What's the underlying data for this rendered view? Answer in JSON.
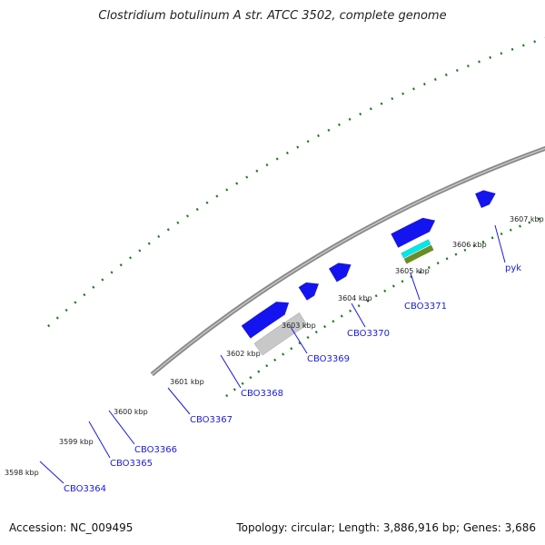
{
  "title": "Clostridium botulinum A str. ATCC 3502, complete genome",
  "footer": {
    "accession": "Accession: NC_009495",
    "stats": "Topology: circular; Length: 3,886,916 bp; Genes: 3,686"
  },
  "ticks": [
    "3598 kbp",
    "3599 kbp",
    "3600 kbp",
    "3601 kbp",
    "3602 kbp",
    "3603 kbp",
    "3604 kbp",
    "3605 kbp",
    "3606 kbp",
    "3607 kbp"
  ],
  "genes": [
    "CBO3364",
    "CBO3365",
    "CBO3366",
    "CBO3367",
    "CBO3368",
    "CBO3369",
    "CBO3370",
    "CBO3371",
    "pyk"
  ],
  "colors": {
    "backbone": "#8a8a8a",
    "cds_forward": "#1414f0",
    "gene_label": "#1a1adc",
    "tick": "#1f7a1f",
    "cog_grey": "#c8c8c8",
    "cog_cyan": "#00e8e8",
    "cog_teal": "#1cc4c4",
    "cog_salmon": "#f08080",
    "cog_olive": "#6b8e23"
  }
}
